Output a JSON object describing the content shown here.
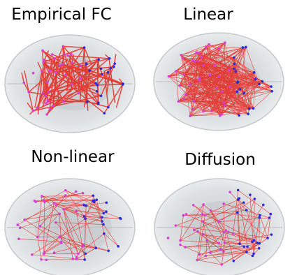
{
  "panels": [
    {
      "title": "Empirical FC"
    },
    {
      "title": "Linear"
    },
    {
      "title": "Non-linear"
    },
    {
      "title": "Diffusion"
    }
  ]
}
